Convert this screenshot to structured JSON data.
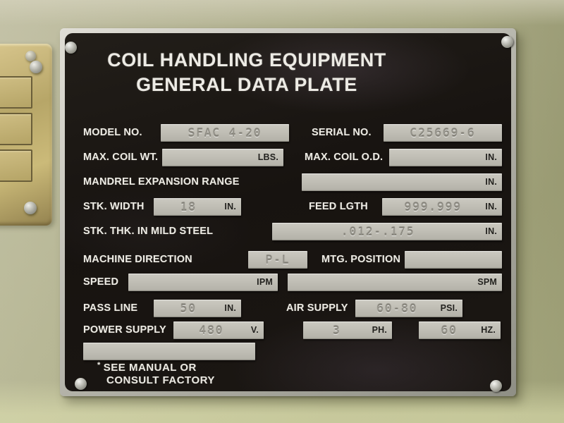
{
  "scene": {
    "wall_color": "#b0b187",
    "plate_bg": "#171310",
    "plate_border_color": "#c6c6bd",
    "field_bg": "#c0beb6",
    "label_color": "#eceae3",
    "unit_color": "#23221f",
    "brass_color": "#bfae74"
  },
  "plate": {
    "title_line1": "COIL HANDLING EQUIPMENT",
    "title_line2": "GENERAL DATA PLATE",
    "footnote_marker": "*",
    "footnote_line1": "SEE MANUAL OR",
    "footnote_line2": "CONSULT FACTORY",
    "rows": [
      {
        "name": "row-model-serial",
        "cells": [
          {
            "kind": "label",
            "name": "model-no-label",
            "text": "MODEL NO."
          },
          {
            "kind": "field",
            "name": "model-no-field",
            "value": "SFAC 4-20",
            "unit": ""
          },
          {
            "kind": "label",
            "name": "serial-no-label",
            "text": "SERIAL NO."
          },
          {
            "kind": "field",
            "name": "serial-no-field",
            "value": "C25669-6",
            "unit": ""
          }
        ]
      },
      {
        "name": "row-max-coil",
        "cells": [
          {
            "kind": "label",
            "name": "max-coil-wt-label",
            "text": "MAX. COIL WT."
          },
          {
            "kind": "field",
            "name": "max-coil-wt-field",
            "value": "",
            "unit": "LBS."
          },
          {
            "kind": "label",
            "name": "max-coil-od-label",
            "text": "MAX. COIL O.D."
          },
          {
            "kind": "field",
            "name": "max-coil-od-field",
            "value": "",
            "unit": "IN."
          }
        ]
      },
      {
        "name": "row-mandrel-expansion",
        "cells": [
          {
            "kind": "label",
            "name": "mandrel-expansion-range-label",
            "text": "MANDREL EXPANSION RANGE"
          },
          {
            "kind": "field",
            "name": "mandrel-expansion-range-field",
            "value": "",
            "unit": "IN."
          }
        ]
      },
      {
        "name": "row-stk-width-feed-lgth",
        "cells": [
          {
            "kind": "label",
            "name": "stk-width-label",
            "text": "STK. WIDTH"
          },
          {
            "kind": "field",
            "name": "stk-width-field",
            "value": "18",
            "unit": "IN."
          },
          {
            "kind": "label",
            "name": "feed-lgth-label",
            "text": "FEED LGTH"
          },
          {
            "kind": "field",
            "name": "feed-lgth-field",
            "value": "999.999",
            "unit": "IN."
          }
        ]
      },
      {
        "name": "row-stk-thk",
        "cells": [
          {
            "kind": "label",
            "name": "stk-thk-mild-steel-label",
            "text": "STK. THK. IN MILD STEEL"
          },
          {
            "kind": "field",
            "name": "stk-thk-mild-steel-field",
            "value": ".012-.175",
            "unit": "IN."
          }
        ]
      },
      {
        "name": "row-direction-position",
        "cells": [
          {
            "kind": "label",
            "name": "machine-direction-label",
            "text": "MACHINE DIRECTION"
          },
          {
            "kind": "field",
            "name": "machine-direction-field",
            "value": "P-L",
            "unit": ""
          },
          {
            "kind": "label",
            "name": "mtg-position-label",
            "text": "MTG. POSITION"
          },
          {
            "kind": "field",
            "name": "mtg-position-field",
            "value": "",
            "unit": ""
          }
        ]
      },
      {
        "name": "row-speed",
        "cells": [
          {
            "kind": "label",
            "name": "speed-label",
            "text": "SPEED"
          },
          {
            "kind": "field",
            "name": "speed-ipm-field",
            "value": "",
            "unit": "IPM"
          },
          {
            "kind": "field",
            "name": "speed-spm-field",
            "value": "",
            "unit": "SPM"
          }
        ]
      },
      {
        "name": "row-pass-line-air-supply",
        "cells": [
          {
            "kind": "label",
            "name": "pass-line-label",
            "text": "PASS LINE"
          },
          {
            "kind": "field",
            "name": "pass-line-field",
            "value": "50",
            "unit": "IN."
          },
          {
            "kind": "label",
            "name": "air-supply-label",
            "text": "AIR SUPPLY"
          },
          {
            "kind": "field",
            "name": "air-supply-field",
            "value": "60-80",
            "unit": "PSI."
          }
        ]
      },
      {
        "name": "row-power-supply",
        "cells": [
          {
            "kind": "label",
            "name": "power-supply-label",
            "text": "POWER SUPPLY"
          },
          {
            "kind": "field",
            "name": "power-supply-volts-field",
            "value": "480",
            "unit": "V."
          },
          {
            "kind": "field",
            "name": "power-supply-phase-field",
            "value": "3",
            "unit": "PH."
          },
          {
            "kind": "field",
            "name": "power-supply-hertz-field",
            "value": "60",
            "unit": "HZ."
          }
        ]
      },
      {
        "name": "row-extra-blank",
        "cells": [
          {
            "kind": "field",
            "name": "extra-blank-field",
            "value": "",
            "unit": ""
          }
        ]
      }
    ]
  }
}
